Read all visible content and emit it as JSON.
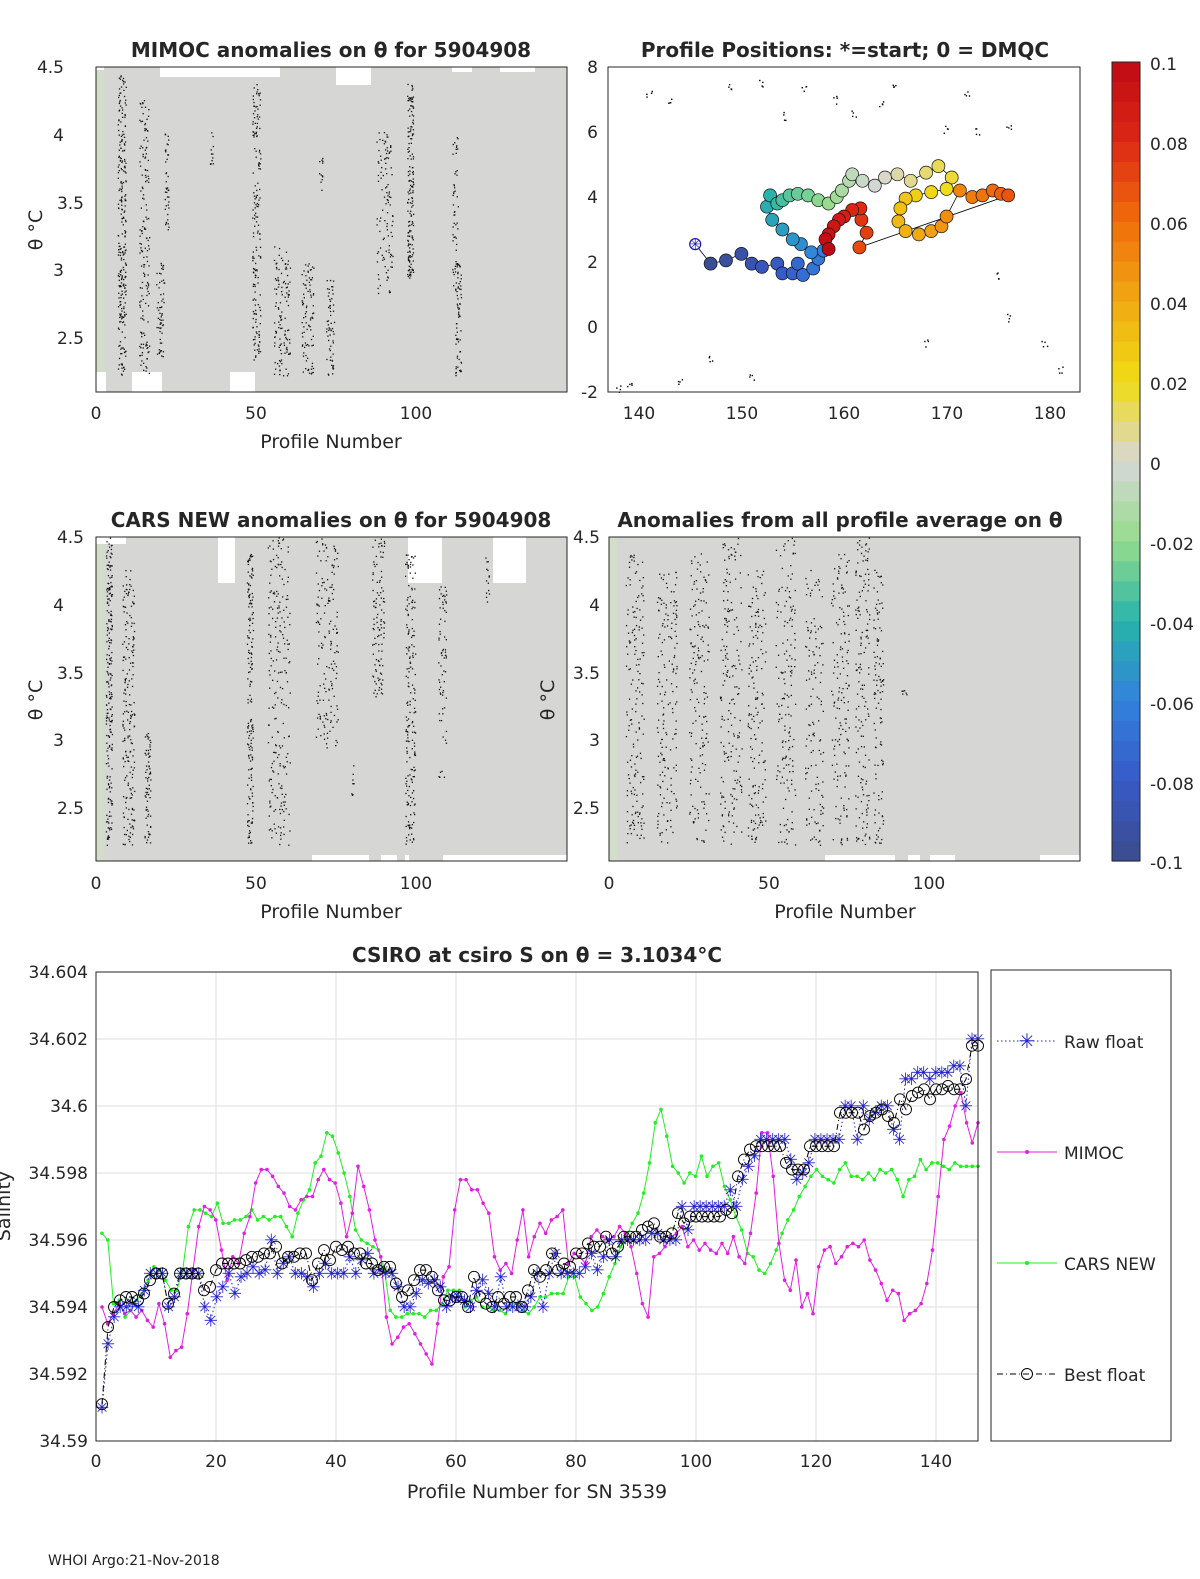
{
  "footer": "WHOI Argo:21-Nov-2018",
  "panels": {
    "mimoc": {
      "title": "MIMOC anomalies on θ  for 5904908",
      "xlabel": "Profile Number",
      "ylabel": "θ °C",
      "xticks": [
        "0",
        "50",
        "100"
      ],
      "yticks": [
        "2.5",
        "3",
        "3.5",
        "4",
        "4.5"
      ]
    },
    "cars": {
      "title": "CARS NEW anomalies on θ for 5904908",
      "xlabel": "Profile Number",
      "ylabel": "θ °C",
      "xticks": [
        "0",
        "50",
        "100"
      ],
      "yticks": [
        "2.5",
        "3",
        "3.5",
        "4",
        "4.5"
      ]
    },
    "avg": {
      "title": "Anomalies from all profile average on θ",
      "xlabel": "Profile Number",
      "ylabel": "θ °C",
      "xticks": [
        "0",
        "50",
        "100"
      ],
      "yticks": [
        "2.5",
        "3",
        "3.5",
        "4",
        "4.5"
      ]
    },
    "positions": {
      "title": "Profile Positions: *=start; 0 = DMQC",
      "xticks": [
        "140",
        "150",
        "160",
        "170",
        "180"
      ],
      "yticks": [
        "-2",
        "0",
        "2",
        "4",
        "6",
        "8"
      ]
    }
  },
  "colorbar": {
    "ticks": [
      "0.1",
      "0.08",
      "0.06",
      "0.04",
      "0.02",
      "0",
      "-0.02",
      "-0.04",
      "-0.06",
      "-0.08",
      "-0.1"
    ]
  },
  "chart_data": [
    {
      "type": "heatmap",
      "title": "MIMOC anomalies on θ  for 5904908",
      "xlabel": "Profile Number",
      "ylabel": "θ °C",
      "xlim": [
        0,
        147
      ],
      "ylim": [
        2.1,
        4.5
      ],
      "clim": [
        -0.1,
        0.1
      ]
    },
    {
      "type": "scatter",
      "title": "Profile Positions: *=start; 0 = DMQC",
      "xlim": [
        137,
        183
      ],
      "ylim": [
        -2,
        8
      ],
      "track": [
        [
          145.5,
          2.55
        ],
        [
          147,
          1.95
        ],
        [
          148.5,
          2.05
        ],
        [
          150,
          2.25
        ],
        [
          151,
          1.95
        ],
        [
          152,
          1.85
        ],
        [
          153.5,
          1.95
        ],
        [
          154,
          1.65
        ],
        [
          155,
          1.65
        ],
        [
          155.5,
          1.95
        ],
        [
          156,
          1.6
        ],
        [
          157,
          1.8
        ],
        [
          157.5,
          2.1
        ],
        [
          158,
          2.35
        ],
        [
          156.8,
          2.3
        ],
        [
          155.8,
          2.55
        ],
        [
          155,
          2.7
        ],
        [
          154,
          3.0
        ],
        [
          153,
          3.3
        ],
        [
          152.5,
          3.7
        ],
        [
          152.8,
          4.05
        ],
        [
          153.5,
          3.8
        ],
        [
          154,
          3.9
        ],
        [
          154.7,
          4.05
        ],
        [
          155.5,
          4.1
        ],
        [
          156.5,
          4.05
        ],
        [
          157.5,
          3.9
        ],
        [
          158.5,
          3.8
        ],
        [
          159.3,
          4.0
        ],
        [
          159.8,
          4.2
        ],
        [
          160.5,
          4.5
        ],
        [
          160.8,
          4.7
        ],
        [
          161.8,
          4.5
        ],
        [
          163,
          4.35
        ],
        [
          164,
          4.6
        ],
        [
          165.2,
          4.7
        ],
        [
          166.5,
          4.5
        ],
        [
          168,
          4.75
        ],
        [
          169.2,
          4.95
        ],
        [
          170.5,
          4.6
        ],
        [
          170,
          4.25
        ],
        [
          168.5,
          4.15
        ],
        [
          167,
          4.05
        ],
        [
          166,
          3.95
        ],
        [
          165.5,
          3.65
        ],
        [
          165.3,
          3.25
        ],
        [
          166,
          2.95
        ],
        [
          167.3,
          2.85
        ],
        [
          168.5,
          2.95
        ],
        [
          169.5,
          3.1
        ],
        [
          170,
          3.4
        ],
        [
          171.3,
          4.2
        ],
        [
          172.5,
          4.0
        ],
        [
          173.5,
          4.05
        ],
        [
          174.5,
          4.2
        ],
        [
          175.3,
          4.1
        ],
        [
          176,
          4.05
        ],
        [
          161.5,
          2.45
        ],
        [
          162.2,
          2.9
        ],
        [
          161.7,
          3.3
        ],
        [
          161.6,
          3.65
        ],
        [
          160.8,
          3.6
        ],
        [
          160,
          3.4
        ],
        [
          159.5,
          3.3
        ],
        [
          159,
          3.1
        ],
        [
          158.5,
          2.85
        ],
        [
          158.2,
          2.7
        ],
        [
          158.5,
          2.4
        ]
      ],
      "colors_by_anomaly": true
    },
    {
      "type": "heatmap",
      "title": "CARS NEW anomalies on θ for 5904908",
      "xlabel": "Profile Number",
      "ylabel": "θ °C",
      "xlim": [
        0,
        147
      ],
      "ylim": [
        2.1,
        4.5
      ],
      "clim": [
        -0.1,
        0.1
      ]
    },
    {
      "type": "heatmap",
      "title": "Anomalies from all profile average on θ",
      "xlabel": "Profile Number",
      "ylabel": "θ °C",
      "xlim": [
        0,
        147
      ],
      "ylim": [
        2.1,
        4.5
      ],
      "clim": [
        -0.1,
        0.1
      ]
    },
    {
      "type": "line",
      "title": "CSIRO at csiro S on θ = 3.1034°C",
      "xlabel": "Profile Number for SN 3539",
      "ylabel": "Salinity",
      "xlim": [
        0,
        147
      ],
      "ylim": [
        34.59,
        34.604
      ],
      "xticks": [
        "0",
        "20",
        "40",
        "60",
        "80",
        "100",
        "120",
        "140"
      ],
      "yticks": [
        "34.59",
        "34.592",
        "34.594",
        "34.596",
        "34.598",
        "34.6",
        "34.602",
        "34.604"
      ],
      "series": [
        {
          "name": "Raw float",
          "color": "#2222cc",
          "values": [
            34.591,
            34.5929,
            34.5937,
            34.594,
            34.594,
            34.5941,
            34.594,
            34.5945,
            34.595,
            34.595,
            34.595,
            34.594,
            34.5943,
            34.595,
            34.595,
            34.595,
            34.595,
            34.594,
            34.5936,
            34.5943,
            34.5946,
            34.595,
            34.5944,
            34.5949,
            34.595,
            34.5952,
            34.595,
            34.5951,
            34.596,
            34.595,
            34.5953,
            34.5955,
            34.595,
            34.595,
            34.5949,
            34.5946,
            34.595,
            34.5953,
            34.595,
            34.595,
            34.595,
            34.5955,
            34.595,
            34.5954,
            34.5956,
            34.595,
            34.5951,
            34.595,
            34.595,
            34.5946,
            34.594,
            34.594,
            34.5944,
            34.5948,
            34.5947,
            34.5948,
            34.5946,
            34.594,
            34.5943,
            34.5943,
            34.5942,
            34.594,
            34.5945,
            34.5948,
            34.5944,
            34.594,
            34.5949,
            34.594,
            34.594,
            34.594,
            34.594,
            34.5943,
            34.595,
            34.594,
            34.595,
            34.5956,
            34.595,
            34.595,
            34.595,
            34.595,
            34.5952,
            34.5956,
            34.5951,
            34.5955,
            34.596,
            34.5955,
            34.596,
            34.596,
            34.596,
            34.596,
            34.596,
            34.5962,
            34.5962,
            34.596,
            34.596,
            34.596,
            34.597,
            34.5963,
            34.597,
            34.597,
            34.597,
            34.597,
            34.597,
            34.597,
            34.5975,
            34.597,
            34.5978,
            34.5982,
            34.5985,
            34.599,
            34.599,
            34.599,
            34.599,
            34.599,
            34.5984,
            34.5978,
            34.598,
            34.5983,
            34.599,
            34.599,
            34.599,
            34.599,
            34.599,
            34.6,
            34.6,
            34.599,
            34.6,
            34.5996,
            34.5998,
            34.6,
            34.6,
            34.5993,
            34.599,
            34.6008,
            34.6008,
            34.601,
            34.601,
            34.6008,
            34.601,
            34.601,
            34.601,
            34.6012,
            34.6012,
            34.6,
            34.602,
            34.602
          ]
        },
        {
          "name": "MIMOC",
          "color": "#e020e0",
          "values": [
            34.594,
            34.5935,
            34.5938,
            34.5941,
            34.5938,
            34.5939,
            34.5937,
            34.5939,
            34.5936,
            34.5934,
            34.5941,
            34.5935,
            34.5925,
            34.5927,
            34.5928,
            34.5938,
            34.5951,
            34.5964,
            34.597,
            34.5969,
            34.5966,
            34.5957,
            34.5948,
            34.5955,
            34.5953,
            34.5962,
            34.5967,
            34.5977,
            34.5981,
            34.5981,
            34.5979,
            34.5976,
            34.5974,
            34.597,
            34.5969,
            34.5972,
            34.5973,
            34.5973,
            34.5978,
            34.5981,
            34.5978,
            34.5977,
            34.5971,
            34.5961,
            34.5968,
            34.5982,
            34.5976,
            34.5969,
            34.596,
            34.5955,
            34.5937,
            34.5929,
            34.5931,
            34.5934,
            34.5935,
            34.5932,
            34.5929,
            34.5926,
            34.5923,
            34.5935,
            34.5949,
            34.5952,
            34.5969,
            34.5978,
            34.5978,
            34.5975,
            34.5975,
            34.5971,
            34.5968,
            34.5955,
            34.5951,
            34.5953,
            34.595,
            34.596,
            34.5969,
            34.5955,
            34.5961,
            34.5965,
            34.5962,
            34.5966,
            34.5967,
            34.5969,
            34.5953,
            34.5956,
            34.5955,
            34.5953,
            34.5961,
            34.5963,
            34.5961,
            34.596,
            34.5961,
            34.5964,
            34.5962,
            34.5958,
            34.595,
            34.5941,
            34.5937,
            34.5955,
            34.5956,
            34.5958,
            34.5961,
            34.5962,
            34.5964,
            34.5958,
            34.596,
            34.5957,
            34.5959,
            34.5957,
            34.5956,
            34.5959,
            34.5956,
            34.5961,
            34.5955,
            34.5953,
            34.5962,
            34.5974,
            34.5992,
            34.5992,
            34.5979,
            34.5959,
            34.5948,
            34.5945,
            34.5954,
            34.594,
            34.5944,
            34.5938,
            34.5952,
            34.5957,
            34.5958,
            34.5953,
            34.5955,
            34.5958,
            34.5959,
            34.5958,
            34.596,
            34.5954,
            34.5951,
            34.5947,
            34.5942,
            34.5945,
            34.5944,
            34.5936,
            34.5938,
            34.5939,
            34.5941,
            34.5947,
            34.5957,
            34.5973,
            34.599,
            34.5994,
            34.6,
            34.6004,
            34.5995,
            34.5989,
            34.5995
          ]
        },
        {
          "name": "CARS NEW",
          "color": "#22ee22",
          "values": [
            34.5962,
            34.596,
            34.5941,
            34.5942,
            34.5937,
            34.5939,
            34.5942,
            34.5944,
            34.5948,
            34.5952,
            34.5951,
            34.5948,
            34.5945,
            34.5945,
            34.5951,
            34.5964,
            34.5969,
            34.5969,
            34.5968,
            34.5967,
            34.5971,
            34.5965,
            34.5965,
            34.5966,
            34.5966,
            34.5967,
            34.5969,
            34.5966,
            34.5967,
            34.5966,
            34.5967,
            34.5967,
            34.5964,
            34.5961,
            34.5968,
            34.5972,
            34.5975,
            34.5983,
            34.5985,
            34.5992,
            34.5991,
            34.5986,
            34.598,
            34.5973,
            34.5963,
            34.596,
            34.5959,
            34.5958,
            34.5957,
            34.5951,
            34.5939,
            34.5937,
            34.5937,
            34.5938,
            34.5938,
            34.5938,
            34.5937,
            34.5939,
            34.5939,
            34.5941,
            34.5945,
            34.5945,
            34.5945,
            34.594,
            34.5942,
            34.5943,
            34.594,
            34.594,
            34.5939,
            34.5939,
            34.5938,
            34.5941,
            34.5941,
            34.5939,
            34.5938,
            34.594,
            34.5943,
            34.5943,
            34.5944,
            34.5944,
            34.5944,
            34.5949,
            34.5949,
            34.5943,
            34.5941,
            34.5939,
            34.594,
            34.5944,
            34.5949,
            34.5953,
            34.5958,
            34.5961,
            34.5965,
            34.5968,
            34.5974,
            34.5983,
            34.5995,
            34.5999,
            34.5991,
            34.5982,
            34.598,
            34.5977,
            34.598,
            34.5979,
            34.5985,
            34.5979,
            34.5982,
            34.5983,
            34.5976,
            34.5972,
            34.5967,
            34.5963,
            34.5956,
            34.5955,
            34.5951,
            34.595,
            34.5953,
            34.5957,
            34.5962,
            34.5966,
            34.5969,
            34.5973,
            34.5976,
            34.5979,
            34.5981,
            34.5979,
            34.5978,
            34.5977,
            34.5981,
            34.5983,
            34.5979,
            34.5979,
            34.5978,
            34.598,
            34.5978,
            34.5981,
            34.598,
            34.5981,
            34.5978,
            34.5973,
            34.5978,
            34.5979,
            34.5984,
            34.5981,
            34.5983,
            34.5983,
            34.5982,
            34.5981,
            34.5983,
            34.5982,
            34.5982,
            34.5982,
            34.5982
          ]
        },
        {
          "name": "Best float",
          "color": "#000000",
          "values": [
            34.5911,
            34.5934,
            34.594,
            34.5942,
            34.5943,
            34.5943,
            34.5942,
            34.5944,
            34.5948,
            34.595,
            34.595,
            34.5941,
            34.5944,
            34.595,
            34.595,
            34.595,
            34.595,
            34.5945,
            34.5946,
            34.5951,
            34.5953,
            34.5953,
            34.5953,
            34.5953,
            34.5954,
            34.5955,
            34.5955,
            34.5956,
            34.5956,
            34.5958,
            34.5953,
            34.5955,
            34.5955,
            34.5956,
            34.5956,
            34.5948,
            34.5953,
            34.5957,
            34.5954,
            34.5958,
            34.5957,
            34.5958,
            34.5956,
            34.5956,
            34.5953,
            34.5953,
            34.5951,
            34.5952,
            34.5952,
            34.5947,
            34.5943,
            34.5945,
            34.5948,
            34.5951,
            34.5951,
            34.5949,
            34.5945,
            34.5942,
            34.5942,
            34.5943,
            34.5943,
            34.594,
            34.5949,
            34.5943,
            34.5941,
            34.594,
            34.5943,
            34.5941,
            34.5943,
            34.5943,
            34.594,
            34.5945,
            34.5951,
            34.5949,
            34.5951,
            34.5956,
            34.5951,
            34.5953,
            34.5952,
            34.5956,
            34.5956,
            34.5959,
            34.5958,
            34.5958,
            34.5961,
            34.5956,
            34.5958,
            34.5961,
            34.5961,
            34.5961,
            34.5963,
            34.5964,
            34.5965,
            34.5961,
            34.5961,
            34.5962,
            34.5968,
            34.5965,
            34.5967,
            34.5967,
            34.5967,
            34.5967,
            34.5967,
            34.5967,
            34.5969,
            34.5968,
            34.5979,
            34.5984,
            34.5987,
            34.5988,
            34.5988,
            34.5988,
            34.5988,
            34.5988,
            34.5983,
            34.5981,
            34.5981,
            34.5981,
            34.5988,
            34.5988,
            34.5988,
            34.5988,
            34.5988,
            34.5998,
            34.5998,
            34.5998,
            34.5998,
            34.5993,
            34.5997,
            34.5998,
            34.5999,
            34.5997,
            34.5995,
            34.6002,
            34.5999,
            34.6003,
            34.6004,
            34.6005,
            34.6002,
            34.6005,
            34.6005,
            34.6006,
            34.6005,
            34.6005,
            34.6008,
            34.6018,
            34.6018
          ]
        }
      ],
      "legend": "right"
    }
  ]
}
